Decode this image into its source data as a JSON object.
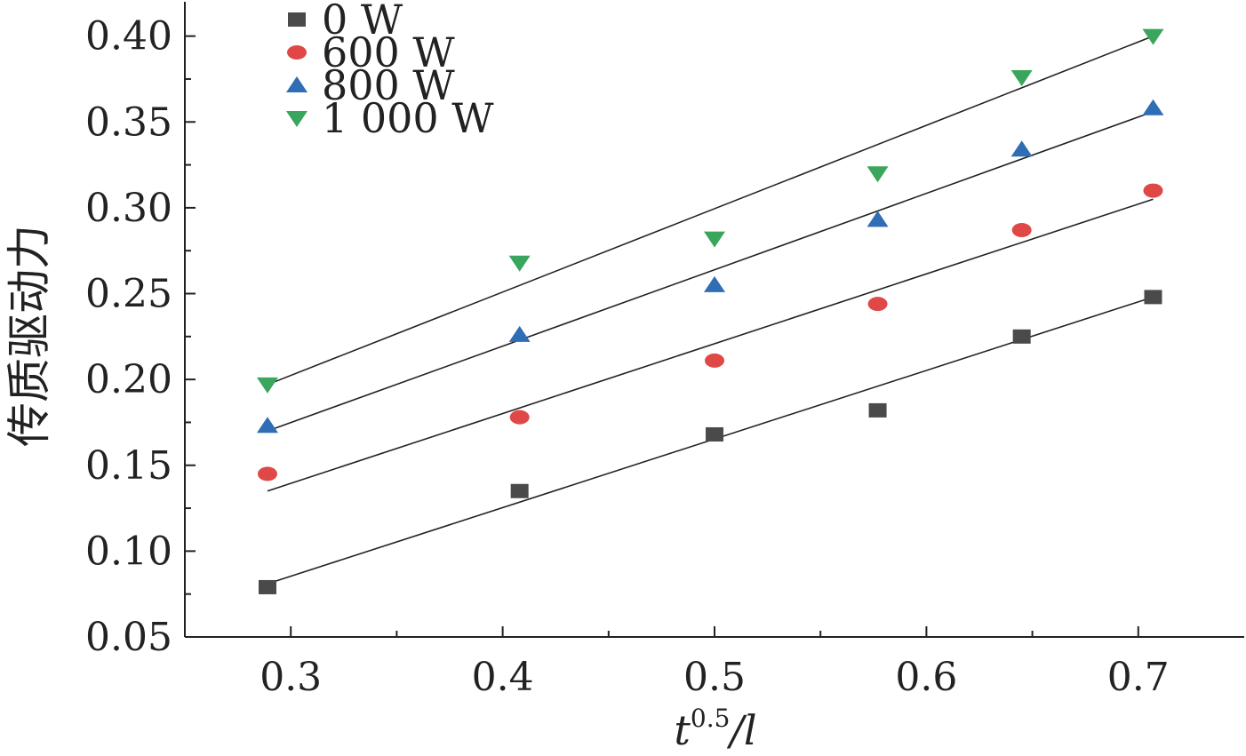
{
  "chart_data": {
    "type": "scatter",
    "xlabel": {
      "base": "t",
      "superscript": "0.5",
      "suffix": "/l"
    },
    "ylabel": "传质驱动力",
    "xlim": [
      0.25,
      0.75
    ],
    "ylim": [
      0.05,
      0.42
    ],
    "x_ticks": [
      "0.3",
      "0.4",
      "0.5",
      "0.6",
      "0.7"
    ],
    "y_ticks": [
      "0.05",
      "0.10",
      "0.15",
      "0.20",
      "0.25",
      "0.30",
      "0.35",
      "0.40"
    ],
    "legend_position": "top-left",
    "grid": false,
    "x": [
      0.289,
      0.408,
      0.5,
      0.577,
      0.645,
      0.707
    ],
    "series": [
      {
        "name": "0 W",
        "marker": "square",
        "color": "#4a4a4a",
        "values": [
          0.079,
          0.135,
          0.168,
          0.182,
          0.225,
          0.248
        ],
        "fit": [
          0.081,
          0.248
        ]
      },
      {
        "name": "600 W",
        "marker": "circle",
        "color": "#e04848",
        "values": [
          0.145,
          0.178,
          0.211,
          0.244,
          0.287,
          0.31
        ],
        "fit": [
          0.135,
          0.305
        ]
      },
      {
        "name": "800 W",
        "marker": "triangle-up",
        "color": "#2f6db5",
        "values": [
          0.173,
          0.226,
          0.255,
          0.293,
          0.334,
          0.358
        ],
        "fit": [
          0.17,
          0.356
        ]
      },
      {
        "name": "1 000 W",
        "marker": "triangle-down",
        "color": "#3aa55c",
        "values": [
          0.197,
          0.268,
          0.282,
          0.32,
          0.376,
          0.4
        ],
        "fit": [
          0.197,
          0.4
        ]
      }
    ]
  }
}
